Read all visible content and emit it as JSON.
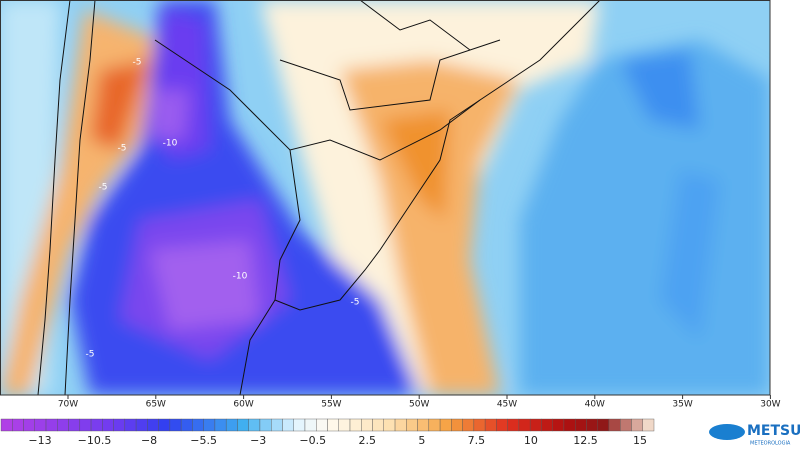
{
  "map": {
    "longitude_labels": [
      "70W",
      "65W",
      "60W",
      "55W",
      "50W",
      "45W",
      "40W",
      "35W",
      "30W"
    ],
    "contour_labels": [
      "-5",
      "-10",
      "-5",
      "-5",
      "-10",
      "-5",
      "-5"
    ]
  },
  "colorbar": {
    "labels": [
      "−13",
      "−10.5",
      "−8",
      "−5.5",
      "−3",
      "−0.5",
      "2.5",
      "5",
      "7.5",
      "10",
      "12.5",
      "15"
    ]
  },
  "logo": {
    "name": "METSUL",
    "tagline": "METEOROLOGIA"
  }
}
